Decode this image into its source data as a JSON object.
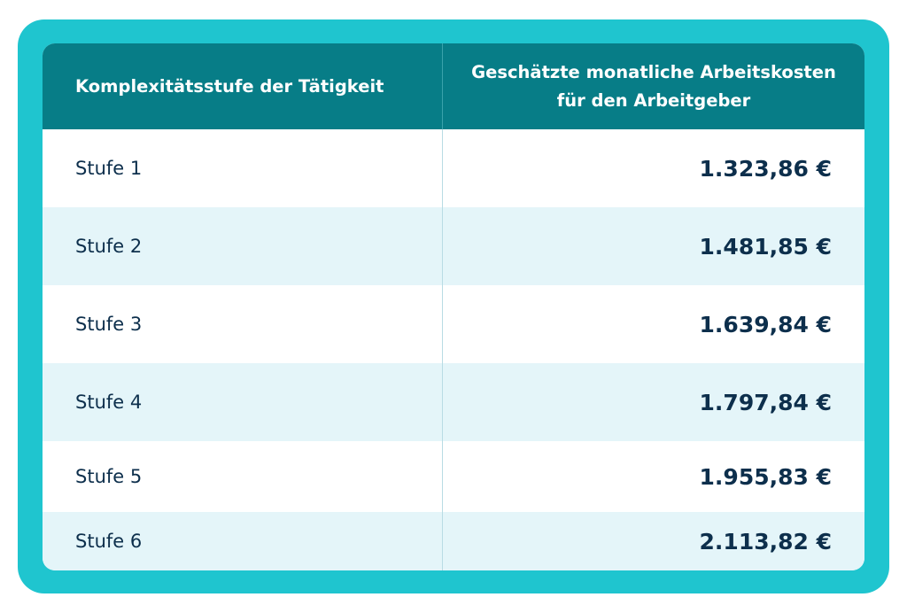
{
  "table": {
    "header": {
      "col1": "Komplexitätsstufe der Tätigkeit",
      "col2_line1": "Geschätzte monatliche Arbeitskosten",
      "col2_line2": "für den Arbeitgeber"
    },
    "rows": [
      {
        "level": "Stufe 1",
        "cost": "1.323,86 €"
      },
      {
        "level": "Stufe 2",
        "cost": "1.481,85 €"
      },
      {
        "level": "Stufe 3",
        "cost": "1.639,84 €"
      },
      {
        "level": "Stufe 4",
        "cost": "1.797,84 €"
      },
      {
        "level": "Stufe 5",
        "cost": "1.955,83 €"
      },
      {
        "level": "Stufe 6",
        "cost": "2.113,82 €"
      }
    ]
  },
  "colors": {
    "frame": "#1fc5cf",
    "header": "#077d87",
    "row_alt": "#e4f5f9",
    "text": "#0d2f4c"
  }
}
